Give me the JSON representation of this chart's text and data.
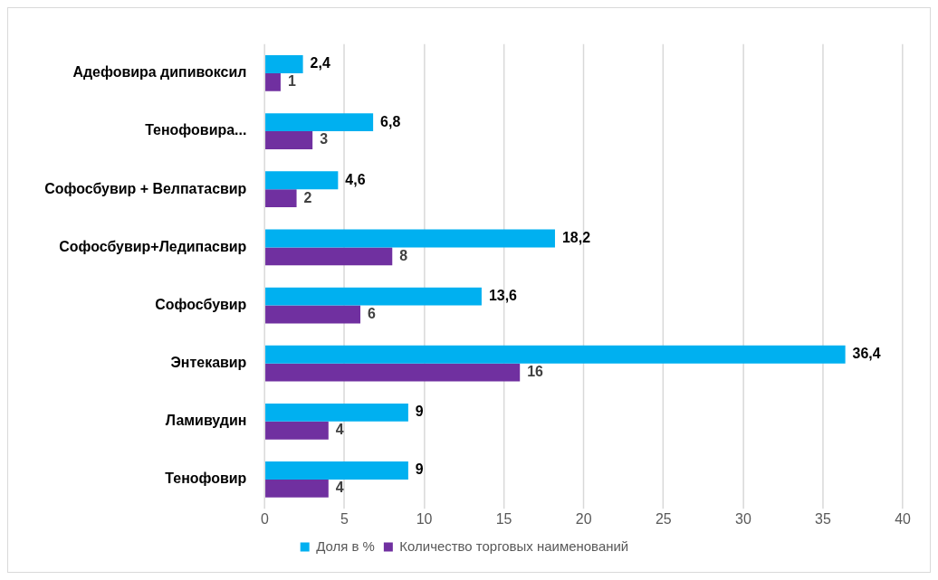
{
  "chart_data": {
    "type": "bar",
    "orientation": "horizontal",
    "categories": [
      "Адефовира дипивоксил",
      "Тенофовира...",
      "Софосбувир + Велпатасвир",
      "Софосбувир+Ледипасвир",
      "Софосбувир",
      "Энтекавир",
      "Ламивудин",
      "Тенофовир"
    ],
    "series": [
      {
        "name": "Доля в %",
        "color": "#00b0f0",
        "values": [
          2.4,
          6.8,
          4.6,
          18.2,
          13.6,
          36.4,
          9,
          9
        ],
        "value_labels": [
          "2,4",
          "6,8",
          "4,6",
          "18,2",
          "13,6",
          "36,4",
          "9",
          "9"
        ]
      },
      {
        "name": "Количество торговых наименований",
        "color": "#7030a0",
        "values": [
          1,
          3,
          2,
          8,
          6,
          16,
          4,
          4
        ],
        "value_labels": [
          "1",
          "3",
          "2",
          "8",
          "6",
          "16",
          "4",
          "4"
        ]
      }
    ],
    "xlim": [
      0,
      40
    ],
    "xticks": [
      0,
      5,
      10,
      15,
      20,
      25,
      30,
      35,
      40
    ],
    "grid": "x",
    "legend": "bottom"
  }
}
